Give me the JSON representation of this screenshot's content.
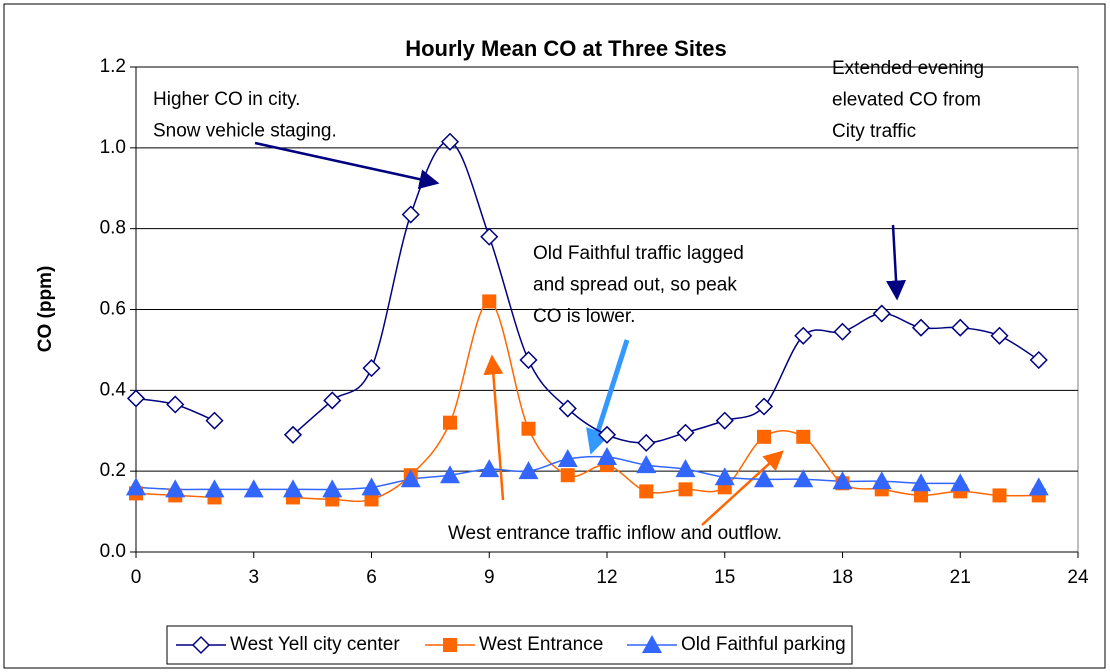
{
  "chart_data": {
    "type": "line",
    "title": "Hourly Mean CO at Three Sites",
    "ylabel": "CO (ppm)",
    "x": [
      0,
      1,
      2,
      3,
      4,
      5,
      6,
      7,
      8,
      9,
      10,
      11,
      12,
      13,
      14,
      15,
      16,
      17,
      18,
      19,
      20,
      21,
      22,
      23
    ],
    "xlim": [
      0,
      24
    ],
    "xticks": [
      0,
      3,
      6,
      9,
      12,
      15,
      18,
      21,
      24
    ],
    "ylim": [
      0,
      1.2
    ],
    "yticks": [
      {
        "value": 0,
        "label": "0.0"
      },
      {
        "value": 0.2,
        "label": "0.2"
      },
      {
        "value": 0.4,
        "label": "0.4"
      },
      {
        "value": 0.6,
        "label": "0.6"
      },
      {
        "value": 0.8,
        "label": "0.8"
      },
      {
        "value": 1,
        "label": "1.0"
      },
      {
        "value": 1.2,
        "label": "1.2"
      }
    ],
    "grid": true,
    "legend": "bottom",
    "series": [
      {
        "name": "West Yell city center",
        "color": "#000080",
        "marker": "diamond",
        "values": [
          0.38,
          0.365,
          0.325,
          null,
          0.29,
          0.375,
          0.455,
          0.835,
          1.015,
          0.78,
          0.475,
          0.355,
          0.29,
          0.27,
          0.295,
          0.325,
          0.36,
          0.535,
          0.545,
          0.59,
          0.555,
          0.555,
          0.535,
          0.475
        ]
      },
      {
        "name": "West Entrance",
        "color": "#ff6600",
        "marker": "square",
        "values": [
          0.145,
          0.14,
          0.135,
          null,
          0.135,
          0.13,
          0.13,
          0.19,
          0.32,
          0.62,
          0.305,
          0.19,
          0.215,
          0.15,
          0.155,
          0.16,
          0.285,
          0.285,
          0.17,
          0.155,
          0.14,
          0.15,
          0.14,
          0.14
        ]
      },
      {
        "name": "Old Faithful parking",
        "color": "#3366ff",
        "marker": "triangle",
        "values": [
          0.16,
          0.155,
          0.155,
          0.155,
          0.155,
          0.155,
          0.16,
          0.18,
          0.19,
          0.205,
          0.2,
          0.23,
          0.235,
          0.215,
          0.205,
          0.185,
          0.18,
          0.18,
          0.175,
          0.175,
          0.17,
          0.17,
          null,
          0.16
        ]
      }
    ],
    "annotations": [
      {
        "lines": [
          "Higher CO in city.",
          "Snow vehicle staging."
        ]
      },
      {
        "lines": [
          "Extended evening",
          "elevated CO from",
          "City traffic"
        ]
      },
      {
        "lines": [
          "Old Faithful traffic lagged",
          "and spread out, so peak",
          "CO is lower."
        ]
      },
      {
        "lines": [
          "West entrance traffic inflow and outflow."
        ]
      }
    ]
  }
}
